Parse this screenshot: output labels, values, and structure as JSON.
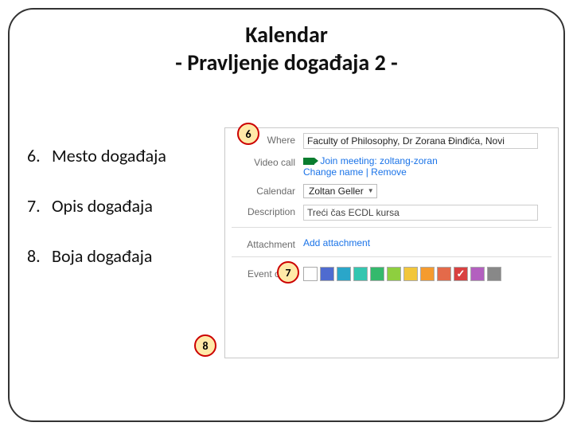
{
  "title": {
    "line1": "Kalendar",
    "line2": "- Pravljenje događaja 2 -"
  },
  "bullets": [
    {
      "num": "6.",
      "text": "Mesto događaja"
    },
    {
      "num": "7.",
      "text": "Opis događaja"
    },
    {
      "num": "8.",
      "text": "Boja događaja"
    }
  ],
  "callouts": {
    "c6": "6",
    "c7": "7",
    "c8": "8"
  },
  "panel": {
    "where_label": "Where",
    "where_value": "Faculty of Philosophy, Dr Zorana Đinđića, Novi",
    "video_label": "Video call",
    "video_link": "Join meeting: zoltang-zoran",
    "video_actions": "Change name | Remove",
    "calendar_label": "Calendar",
    "calendar_value": "Zoltan Geller",
    "desc_label": "Description",
    "desc_value": "Treći čas ECDL kursa",
    "attach_label": "Attachment",
    "attach_link": "Add attachment",
    "color_label": "Event color",
    "swatches": [
      {
        "c": "#ffffff"
      },
      {
        "c": "#4f6bd0"
      },
      {
        "c": "#2aa6c9"
      },
      {
        "c": "#34c6b0"
      },
      {
        "c": "#34b96c"
      },
      {
        "c": "#8ecf3f"
      },
      {
        "c": "#f2c63a"
      },
      {
        "c": "#f59b2e"
      },
      {
        "c": "#e46a4a"
      },
      {
        "c": "#d94040",
        "check": true
      },
      {
        "c": "#b35fbf"
      },
      {
        "c": "#888888"
      }
    ]
  }
}
